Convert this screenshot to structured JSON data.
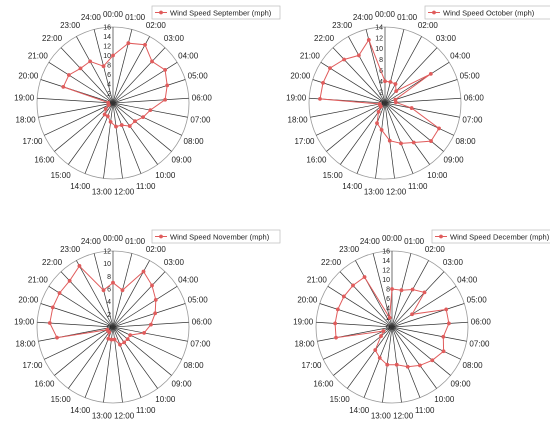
{
  "chart_data": [
    {
      "type": "radar",
      "series_name": "Wind Speed September (mph)",
      "rmax": 16,
      "rstep": 2,
      "categories": [
        "00:00",
        "01:00",
        "02:00",
        "03:00",
        "04:00",
        "05:00",
        "06:00",
        "07:00",
        "08:00",
        "09:00",
        "10:00",
        "11:00",
        "12:00",
        "13:00",
        "14:00",
        "15:00",
        "16:00",
        "17:00",
        "18:00",
        "19:00",
        "20:00",
        "21:00",
        "22:00",
        "23:00",
        "24:00"
      ],
      "values": [
        10,
        13,
        14,
        12,
        13,
        12,
        11,
        8,
        7,
        6,
        6,
        5,
        5,
        4,
        3,
        3,
        2,
        1,
        1,
        1,
        11,
        11,
        10,
        10,
        8
      ],
      "color": "#e05c5c",
      "legend_position": "top-right"
    },
    {
      "type": "radar",
      "series_name": "Wind Speed October (mph)",
      "rmax": 14,
      "rstep": 2,
      "categories": [
        "00:00",
        "01:00",
        "02:00",
        "03:00",
        "04:00",
        "05:00",
        "06:00",
        "07:00",
        "08:00",
        "09:00",
        "10:00",
        "11:00",
        "12:00",
        "13:00",
        "14:00",
        "15:00",
        "16:00",
        "17:00",
        "18:00",
        "19:00",
        "20:00",
        "21:00",
        "22:00",
        "23:00",
        "24:00"
      ],
      "values": [
        4,
        4,
        4,
        3,
        10,
        2,
        2,
        5,
        11,
        11,
        9,
        8,
        7,
        5,
        4,
        2,
        1,
        1,
        1,
        12,
        12,
        12,
        11,
        10,
        12
      ],
      "color": "#e05c5c",
      "legend_position": "top-right"
    },
    {
      "type": "radar",
      "series_name": "Wind Speed November (mph)",
      "rmax": 12,
      "rstep": 2,
      "categories": [
        "00:00",
        "01:00",
        "02:00",
        "03:00",
        "04:00",
        "05:00",
        "06:00",
        "07:00",
        "08:00",
        "09:00",
        "10:00",
        "11:00",
        "12:00",
        "13:00",
        "14:00",
        "15:00",
        "16:00",
        "17:00",
        "18:00",
        "19:00",
        "20:00",
        "21:00",
        "22:00",
        "23:00",
        "24:00"
      ],
      "values": [
        7,
        6,
        10,
        9,
        8,
        7,
        6,
        5,
        3,
        3,
        3,
        3,
        2,
        2,
        2,
        1,
        1,
        1,
        9,
        10,
        10,
        10,
        10,
        11,
        6
      ],
      "color": "#e05c5c",
      "legend_position": "top-right"
    },
    {
      "type": "radar",
      "series_name": "Wind Speed December (mph)",
      "rmax": 16,
      "rstep": 2,
      "categories": [
        "00:00",
        "01:00",
        "02:00",
        "03:00",
        "04:00",
        "05:00",
        "06:00",
        "07:00",
        "08:00",
        "09:00",
        "10:00",
        "11:00",
        "12:00",
        "13:00",
        "14:00",
        "15:00",
        "16:00",
        "17:00",
        "18:00",
        "19:00",
        "20:00",
        "21:00",
        "22:00",
        "23:00",
        "24:00"
      ],
      "values": [
        8,
        8,
        9,
        10,
        5,
        12,
        12,
        11,
        12,
        11,
        10,
        9,
        8,
        8,
        7,
        6,
        3,
        2,
        12,
        12,
        12,
        12,
        12,
        12,
        2
      ],
      "color": "#e05c5c",
      "legend_position": "top-right"
    }
  ]
}
